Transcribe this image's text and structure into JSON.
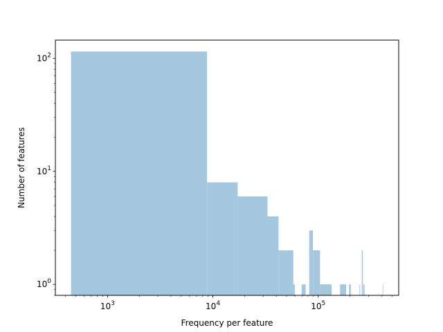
{
  "chart_data": {
    "type": "bar",
    "title": "",
    "xlabel": "Frequency per feature",
    "ylabel": "Number of features",
    "x_scale": "log",
    "y_scale": "log",
    "xlim": [
      320,
      580000
    ],
    "ylim": [
      0.8,
      145
    ],
    "bar_color": "#a6c8df",
    "x_ticks": [
      {
        "value": 1000,
        "base": "10",
        "exp": "3"
      },
      {
        "value": 10000,
        "base": "10",
        "exp": "4"
      },
      {
        "value": 100000,
        "base": "10",
        "exp": "5"
      }
    ],
    "y_ticks": [
      {
        "value": 1,
        "base": "10",
        "exp": "0"
      },
      {
        "value": 10,
        "base": "10",
        "exp": "1"
      },
      {
        "value": 100,
        "base": "10",
        "exp": "2"
      }
    ],
    "bins": [
      {
        "x0": 450,
        "x1": 8800,
        "count": 115
      },
      {
        "x0": 8800,
        "x1": 17200,
        "count": 8
      },
      {
        "x0": 17200,
        "x1": 33000,
        "count": 6
      },
      {
        "x0": 33000,
        "x1": 42000,
        "count": 4
      },
      {
        "x0": 42000,
        "x1": 58000,
        "count": 2
      },
      {
        "x0": 58000,
        "x1": 60000,
        "count": 1
      },
      {
        "x0": 69500,
        "x1": 76000,
        "count": 1
      },
      {
        "x0": 82000,
        "x1": 89000,
        "count": 3
      },
      {
        "x0": 89000,
        "x1": 104000,
        "count": 2
      },
      {
        "x0": 104000,
        "x1": 134000,
        "count": 1
      },
      {
        "x0": 161000,
        "x1": 184000,
        "count": 1
      },
      {
        "x0": 196000,
        "x1": 204000,
        "count": 1
      },
      {
        "x0": 246000,
        "x1": 250000,
        "count": 1
      },
      {
        "x0": 259000,
        "x1": 265000,
        "count": 2
      },
      {
        "x0": 267000,
        "x1": 275000,
        "count": 1
      },
      {
        "x0": 408000,
        "x1": 412000,
        "count": 1
      }
    ]
  }
}
